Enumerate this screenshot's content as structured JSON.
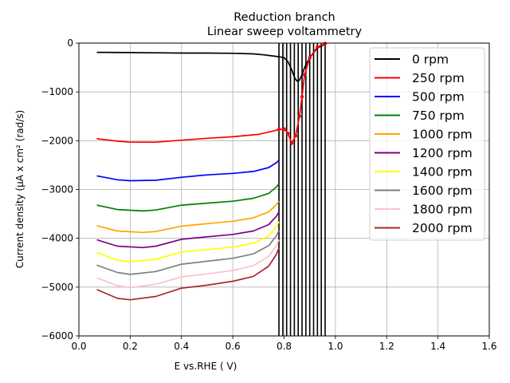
{
  "chart_data": {
    "type": "line",
    "title": "Reduction branch",
    "subtitle": "Linear sweep voltammetry",
    "xlabel": "E vs.RHE ( V)",
    "ylabel": "Current density (µA x  cm² (rad/s)",
    "xlim": [
      0.0,
      1.6
    ],
    "ylim": [
      -6000,
      0
    ],
    "xticks": [
      0.0,
      0.2,
      0.4,
      0.6,
      0.8,
      1.0,
      1.2,
      1.4,
      1.6
    ],
    "xtick_labels": [
      "0.0",
      "0.2",
      "0.4",
      "0.6",
      "0.8",
      "1.0",
      "1.2",
      "1.4",
      "1.6"
    ],
    "yticks": [
      0,
      -1000,
      -2000,
      -3000,
      -4000,
      -5000,
      -6000
    ],
    "ytick_labels": [
      "0",
      "−1000",
      "−2000",
      "−3000",
      "−4000",
      "−5000",
      "−6000"
    ],
    "grid": true,
    "legend_position": "top-right",
    "vertical_lines": [
      0.78,
      0.795,
      0.81,
      0.825,
      0.84,
      0.855,
      0.87,
      0.885,
      0.9,
      0.915,
      0.93,
      0.945,
      0.96
    ],
    "series": [
      {
        "name": "0 rpm",
        "color": "#000000",
        "x": [
          0.07,
          0.2,
          0.3,
          0.4,
          0.5,
          0.6,
          0.68,
          0.72,
          0.75,
          0.78,
          0.8,
          0.815,
          0.83,
          0.84,
          0.85,
          0.86,
          0.87,
          0.88,
          0.9,
          0.93,
          0.96
        ],
        "y": [
          -190,
          -195,
          -200,
          -205,
          -205,
          -210,
          -220,
          -240,
          -260,
          -280,
          -300,
          -380,
          -550,
          -700,
          -780,
          -760,
          -650,
          -500,
          -300,
          -100,
          -20
        ]
      },
      {
        "name": "250 rpm",
        "color": "#ff0000",
        "x": [
          0.07,
          0.15,
          0.2,
          0.3,
          0.4,
          0.5,
          0.6,
          0.7,
          0.76,
          0.78,
          0.8,
          0.815,
          0.83,
          0.845,
          0.86,
          0.87,
          0.88,
          0.9,
          0.93,
          0.96
        ],
        "y": [
          -1960,
          -2010,
          -2030,
          -2030,
          -1990,
          -1950,
          -1920,
          -1870,
          -1800,
          -1770,
          -1760,
          -1850,
          -2050,
          -1900,
          -1500,
          -1100,
          -650,
          -300,
          -80,
          -10
        ]
      },
      {
        "name": "500 rpm",
        "color": "#0000ff",
        "x": [
          0.07,
          0.15,
          0.2,
          0.3,
          0.4,
          0.5,
          0.6,
          0.68,
          0.74,
          0.77,
          0.78
        ],
        "y": [
          -2720,
          -2800,
          -2820,
          -2810,
          -2750,
          -2700,
          -2670,
          -2630,
          -2550,
          -2450,
          -2400
        ]
      },
      {
        "name": "750 rpm",
        "color": "#008000",
        "x": [
          0.07,
          0.15,
          0.25,
          0.3,
          0.4,
          0.5,
          0.6,
          0.68,
          0.74,
          0.77,
          0.78
        ],
        "y": [
          -3320,
          -3410,
          -3440,
          -3420,
          -3320,
          -3280,
          -3240,
          -3180,
          -3080,
          -2950,
          -2880
        ]
      },
      {
        "name": "1000 rpm",
        "color": "#ffa500",
        "x": [
          0.07,
          0.15,
          0.25,
          0.3,
          0.4,
          0.5,
          0.6,
          0.68,
          0.74,
          0.77,
          0.78
        ],
        "y": [
          -3740,
          -3850,
          -3880,
          -3860,
          -3750,
          -3700,
          -3650,
          -3580,
          -3460,
          -3310,
          -3240
        ]
      },
      {
        "name": "1200 rpm",
        "color": "#800080",
        "x": [
          0.07,
          0.15,
          0.25,
          0.3,
          0.4,
          0.5,
          0.6,
          0.68,
          0.74,
          0.77,
          0.78
        ],
        "y": [
          -4030,
          -4160,
          -4190,
          -4160,
          -4020,
          -3970,
          -3920,
          -3850,
          -3720,
          -3550,
          -3460
        ]
      },
      {
        "name": "1400 rpm",
        "color": "#ffff00",
        "x": [
          0.07,
          0.15,
          0.2,
          0.3,
          0.4,
          0.5,
          0.6,
          0.68,
          0.74,
          0.77,
          0.78
        ],
        "y": [
          -4290,
          -4450,
          -4480,
          -4430,
          -4280,
          -4230,
          -4180,
          -4100,
          -3950,
          -3760,
          -3660
        ]
      },
      {
        "name": "1600 rpm",
        "color": "#808080",
        "x": [
          0.07,
          0.15,
          0.2,
          0.3,
          0.4,
          0.5,
          0.6,
          0.68,
          0.74,
          0.77,
          0.78
        ],
        "y": [
          -4550,
          -4700,
          -4740,
          -4680,
          -4530,
          -4470,
          -4410,
          -4320,
          -4150,
          -3950,
          -3840
        ]
      },
      {
        "name": "1800 rpm",
        "color": "#ffc0cb",
        "x": [
          0.07,
          0.15,
          0.2,
          0.3,
          0.4,
          0.5,
          0.6,
          0.68,
          0.74,
          0.77,
          0.78
        ],
        "y": [
          -4810,
          -4970,
          -5010,
          -4940,
          -4790,
          -4730,
          -4660,
          -4560,
          -4370,
          -4150,
          -4030
        ]
      },
      {
        "name": "2000 rpm",
        "color": "#a52a2a",
        "x": [
          0.07,
          0.15,
          0.2,
          0.3,
          0.4,
          0.5,
          0.6,
          0.68,
          0.74,
          0.77,
          0.78
        ],
        "y": [
          -5050,
          -5230,
          -5260,
          -5190,
          -5020,
          -4960,
          -4880,
          -4780,
          -4570,
          -4330,
          -4200
        ]
      }
    ]
  }
}
